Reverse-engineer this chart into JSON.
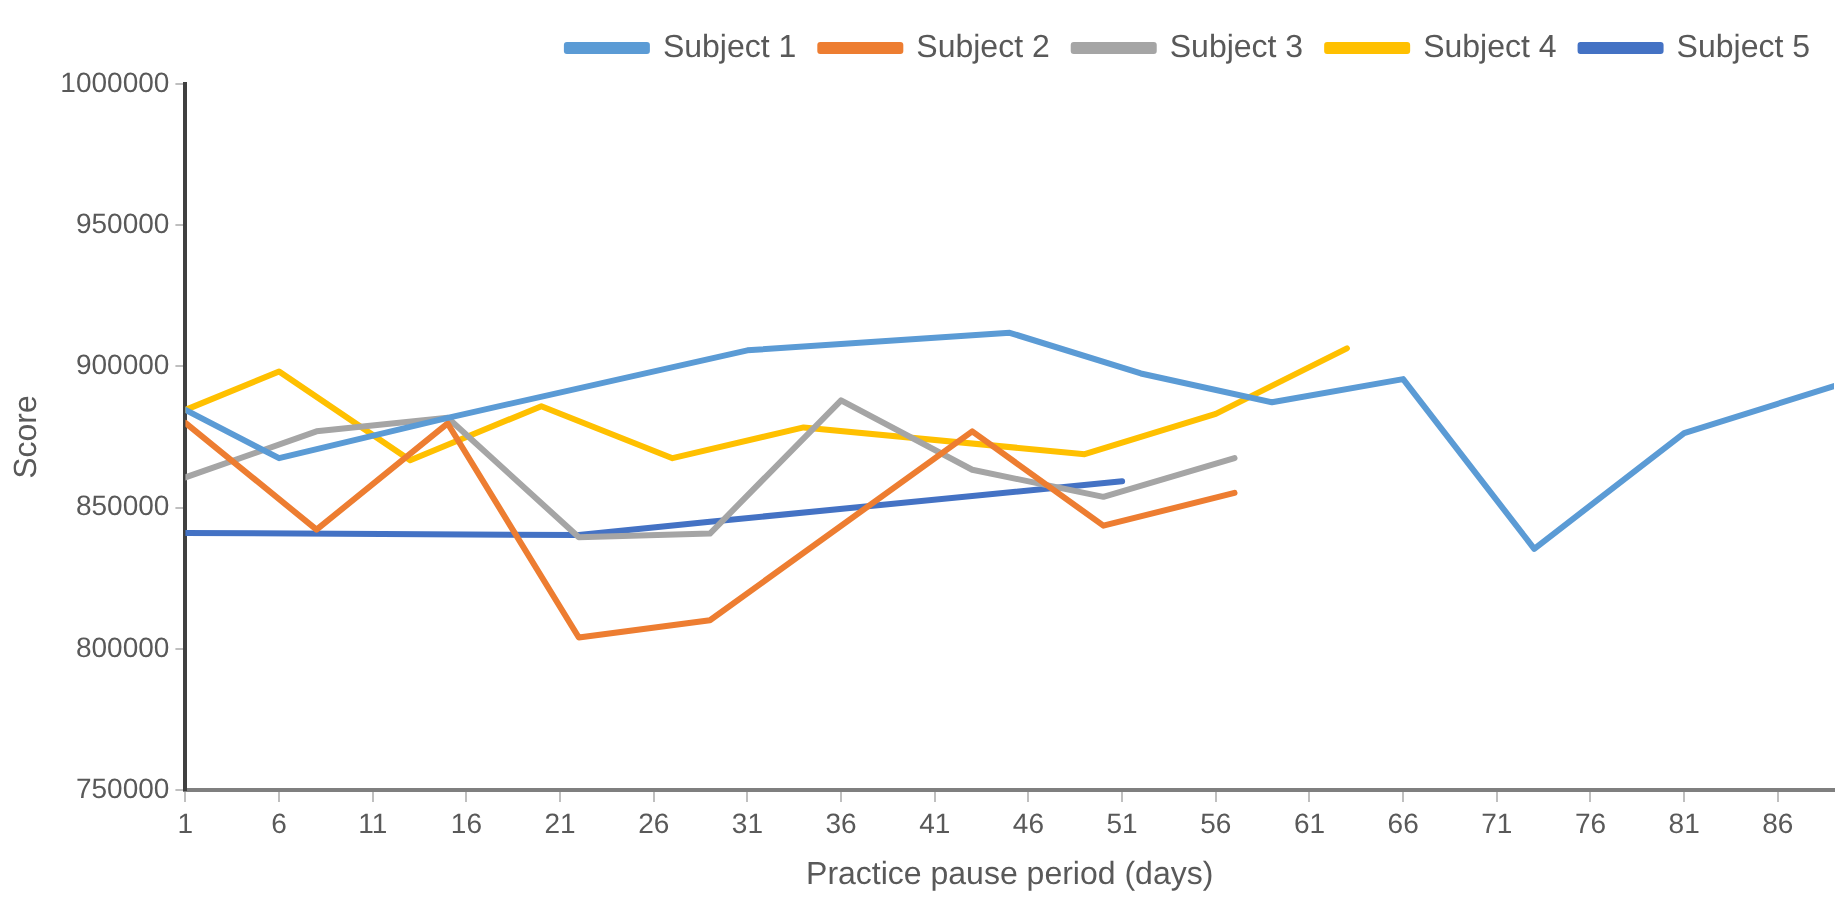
{
  "chart_data": {
    "type": "line",
    "xlabel": "Practice pause period (days)",
    "ylabel": "Score",
    "xlim": [
      1,
      89
    ],
    "xticks": [
      1,
      6,
      11,
      16,
      21,
      26,
      31,
      36,
      41,
      46,
      51,
      56,
      61,
      66,
      71,
      76,
      81,
      86
    ],
    "ylim": [
      750000,
      1000000
    ],
    "yticks": [
      750000,
      800000,
      850000,
      900000,
      950000,
      1000000
    ],
    "grid": false,
    "legend": "top right",
    "marker": "none",
    "line_style": "solid",
    "series": [
      {
        "name": "Subject 1",
        "color": "#5b9bd5",
        "x": [
          1,
          6,
          15,
          31,
          45,
          52,
          59,
          66,
          73,
          81,
          89
        ],
        "values": [
          884600,
          867500,
          881800,
          905700,
          911900,
          897500,
          887300,
          895500,
          835400,
          876400,
          893000
        ]
      },
      {
        "name": "Subject 2",
        "color": "#ed7d31",
        "x": [
          1,
          8,
          15,
          22,
          29,
          43,
          50,
          57
        ],
        "values": [
          880000,
          842200,
          879800,
          804000,
          810100,
          877000,
          843600,
          855200
        ]
      },
      {
        "name": "Subject 3",
        "color": "#a5a5a5",
        "x": [
          1,
          8,
          15,
          22,
          29,
          36,
          43,
          50,
          57
        ],
        "values": [
          860700,
          877000,
          881800,
          839500,
          840800,
          888000,
          863400,
          853800,
          867500
        ]
      },
      {
        "name": "Subject 4",
        "color": "#ffc000",
        "x": [
          1,
          6,
          13,
          20,
          27,
          34,
          49,
          56,
          63
        ],
        "values": [
          884600,
          898200,
          866800,
          885900,
          867500,
          878400,
          868900,
          883200,
          906400
        ]
      },
      {
        "name": "Subject 5",
        "color": "#4472c4",
        "x": [
          1,
          22,
          29,
          51
        ],
        "values": [
          841000,
          840300,
          845000,
          859300
        ]
      }
    ]
  }
}
